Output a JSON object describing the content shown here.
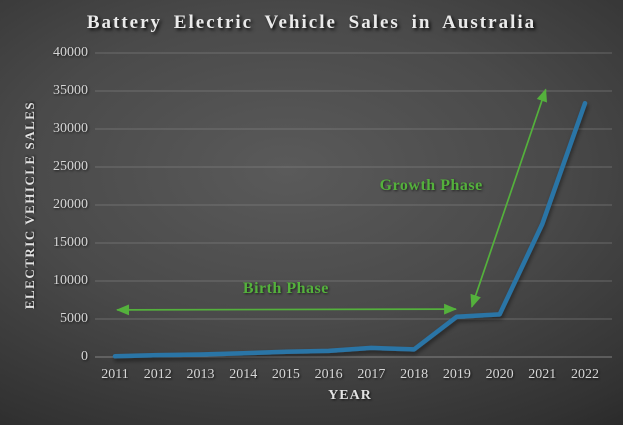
{
  "colors": {
    "background_center": "#5a5a5a",
    "background_edge": "#181818",
    "title_text": "#eaeaea",
    "axis_text": "#d6d6d6",
    "gridline": "#8a8a8a",
    "baseline": "#9a9a9a",
    "series_line": "#2b74a6",
    "annotation_green": "#54b13c"
  },
  "chart_data": {
    "type": "line",
    "title": "Battery Electric Vehicle Sales in Australia",
    "xlabel": "YEAR",
    "ylabel": "ELECTRIC VEHICLE SALES",
    "categories": [
      2011,
      2012,
      2013,
      2014,
      2015,
      2016,
      2017,
      2018,
      2019,
      2020,
      2021,
      2022
    ],
    "series": [
      {
        "name": "Battery electric vehicle sales",
        "values": [
          100,
          250,
          330,
          500,
          700,
          800,
          1200,
          1000,
          5300,
          5600,
          17500,
          33400
        ]
      }
    ],
    "ylim": [
      0,
      40000
    ],
    "yticks": [
      0,
      5000,
      10000,
      15000,
      20000,
      25000,
      30000,
      35000,
      40000
    ],
    "grid": true,
    "legend_position": "none",
    "annotations": [
      {
        "label": "Birth Phase",
        "arrow": "double-headed",
        "from": {
          "year": 2011.05,
          "value": 6200
        },
        "to": {
          "year": 2018.98,
          "value": 6300
        },
        "label_anchor": {
          "year": 2015.0,
          "value": 9000
        }
      },
      {
        "label": "Growth Phase",
        "arrow": "double-headed",
        "from": {
          "year": 2019.35,
          "value": 6600
        },
        "to": {
          "year": 2021.08,
          "value": 35200
        },
        "label_anchor": {
          "year": 2018.4,
          "value": 22500
        }
      }
    ]
  }
}
